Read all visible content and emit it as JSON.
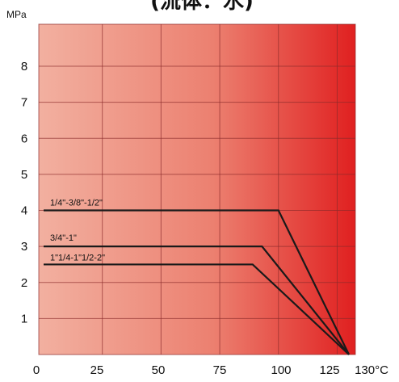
{
  "title": "(流体：水)",
  "chart_data": {
    "type": "line",
    "ylabel": "MPa",
    "xlabel": "",
    "xlim": [
      0,
      137
    ],
    "ylim": [
      0,
      9
    ],
    "x_ticks": [
      "0",
      "25",
      "50",
      "75",
      "100",
      "125",
      "130°C"
    ],
    "x_tick_values": [
      0,
      25,
      50,
      75,
      100,
      125,
      130
    ],
    "y_ticks": [
      "1",
      "2",
      "3",
      "4",
      "5",
      "6",
      "7",
      "8"
    ],
    "y_tick_values": [
      1,
      2,
      3,
      4,
      5,
      6,
      7,
      8
    ],
    "grid": true,
    "background": "red gradient",
    "series": [
      {
        "name": "1/4\"-3/8\"-1/2\"",
        "x": [
          0,
          100,
          130
        ],
        "y": [
          4,
          4,
          0
        ]
      },
      {
        "name": "3/4\"-1\"",
        "x": [
          0,
          93,
          130
        ],
        "y": [
          3,
          3,
          0
        ]
      },
      {
        "name": "1\"1/4-1\"1/2-2\"",
        "x": [
          0,
          89,
          130
        ],
        "y": [
          2.5,
          2.5,
          0
        ]
      }
    ]
  },
  "colors": {
    "gradient_start": "#f2b0a0",
    "gradient_end": "#e02020",
    "line": "#1a1a1a",
    "grid": "#8a2a2a"
  }
}
